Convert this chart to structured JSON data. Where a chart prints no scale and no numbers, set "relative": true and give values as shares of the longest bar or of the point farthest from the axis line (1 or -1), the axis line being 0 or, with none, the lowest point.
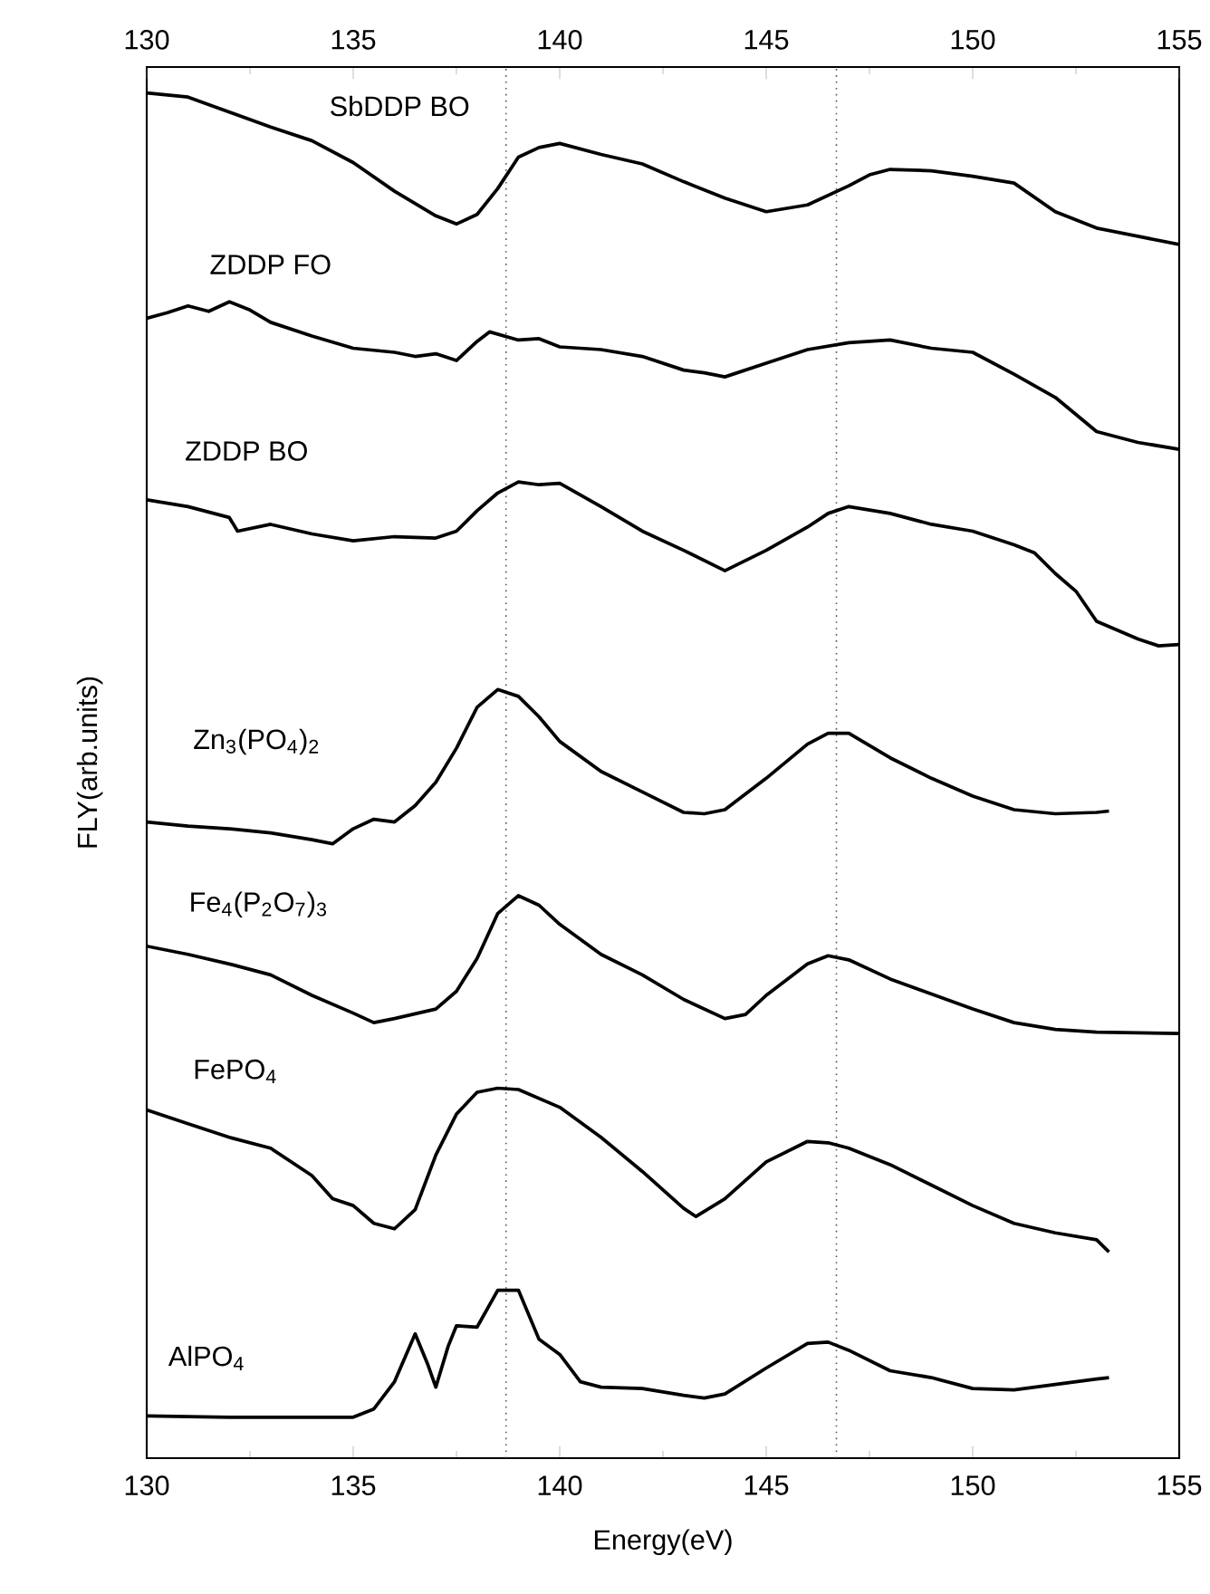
{
  "chart_data": {
    "type": "line",
    "relative": true,
    "xlabel": "Energy(eV)",
    "ylabel": "FLY(arb.units)",
    "xlim": [
      130,
      155
    ],
    "xticks": [
      130,
      135,
      140,
      145,
      150,
      155
    ],
    "x2lim": [
      130,
      155
    ],
    "x2ticks": [
      130,
      135,
      140,
      145,
      150,
      155
    ],
    "line_style": "solid",
    "ref_lines": [
      {
        "axis": "x",
        "value": 138.7,
        "color": "#555555",
        "line_style": "dotted"
      },
      {
        "axis": "x",
        "value": 146.7,
        "color": "#555555",
        "line_style": "dotted"
      }
    ],
    "series": [
      {
        "name": "SbDDP BO",
        "color": "#000000",
        "x": [
          130,
          131,
          132,
          133,
          134,
          135,
          136,
          137,
          137.5,
          138,
          138.5,
          139,
          139.5,
          140,
          141,
          142,
          143,
          144,
          145,
          146,
          146.5,
          147,
          147.5,
          148,
          149,
          150,
          151,
          152,
          153,
          154,
          155
        ],
        "values": [
          1.0,
          0.997,
          0.986,
          0.975,
          0.965,
          0.949,
          0.928,
          0.91,
          0.904,
          0.911,
          0.93,
          0.953,
          0.96,
          0.963,
          0.955,
          0.948,
          0.935,
          0.923,
          0.913,
          0.918,
          0.925,
          0.932,
          0.94,
          0.944,
          0.943,
          0.939,
          0.934,
          0.913,
          0.901,
          0.895,
          0.889
        ]
      },
      {
        "name": "ZDDP FO",
        "color": "#000000",
        "x": [
          130,
          130.5,
          131,
          131.5,
          132,
          132.5,
          133,
          134,
          135,
          136,
          136.5,
          137,
          137.5,
          138,
          138.3,
          139,
          139.5,
          140,
          141,
          142,
          143,
          143.5,
          144,
          145,
          146,
          147,
          148,
          149,
          150,
          151,
          152,
          153,
          154,
          155
        ],
        "values": [
          0.835,
          0.839,
          0.844,
          0.84,
          0.847,
          0.841,
          0.832,
          0.822,
          0.813,
          0.81,
          0.807,
          0.809,
          0.804,
          0.818,
          0.825,
          0.819,
          0.82,
          0.814,
          0.812,
          0.807,
          0.797,
          0.795,
          0.792,
          0.802,
          0.812,
          0.817,
          0.819,
          0.813,
          0.81,
          0.794,
          0.777,
          0.752,
          0.744,
          0.739
        ]
      },
      {
        "name": "ZDDP BO",
        "color": "#000000",
        "x": [
          130,
          131,
          132,
          132.2,
          133,
          134,
          135,
          136,
          137,
          137.5,
          138,
          138.5,
          139,
          139.5,
          140,
          141,
          142,
          143,
          144,
          145,
          146,
          146.5,
          147,
          148,
          149,
          150,
          151,
          151.5,
          152,
          152.5,
          153,
          154,
          154.5,
          155
        ],
        "values": [
          0.702,
          0.697,
          0.689,
          0.679,
          0.684,
          0.677,
          0.672,
          0.675,
          0.674,
          0.679,
          0.694,
          0.707,
          0.715,
          0.713,
          0.714,
          0.697,
          0.679,
          0.665,
          0.65,
          0.665,
          0.682,
          0.692,
          0.697,
          0.692,
          0.684,
          0.679,
          0.669,
          0.663,
          0.648,
          0.635,
          0.613,
          0.6,
          0.595,
          0.596
        ]
      },
      {
        "name": "Zn$_{3}$(PO$_{4}$)$_{2}$",
        "color": "#000000",
        "x": [
          130,
          131,
          132,
          133,
          134,
          134.5,
          135,
          135.5,
          136,
          136.5,
          137,
          137.5,
          138,
          138.5,
          139,
          139.5,
          140,
          141,
          142,
          143,
          143.5,
          144,
          145,
          146,
          146.5,
          147,
          148,
          149,
          150,
          151,
          152,
          153,
          153.3
        ],
        "values": [
          0.466,
          0.463,
          0.461,
          0.458,
          0.453,
          0.45,
          0.461,
          0.468,
          0.466,
          0.478,
          0.495,
          0.52,
          0.55,
          0.563,
          0.558,
          0.543,
          0.525,
          0.503,
          0.488,
          0.473,
          0.472,
          0.475,
          0.498,
          0.523,
          0.531,
          0.531,
          0.513,
          0.498,
          0.485,
          0.475,
          0.472,
          0.473,
          0.474
        ]
      },
      {
        "name": "Fe$_{4}$(P$_{2}$O$_{7}$)$_{3}$",
        "color": "#000000",
        "x": [
          130,
          131,
          132,
          133,
          134,
          135,
          135.5,
          136,
          137,
          137.5,
          138,
          138.5,
          139,
          139.5,
          140,
          141,
          142,
          143,
          144,
          144.5,
          145,
          146,
          146.5,
          147,
          148,
          149,
          150,
          151,
          152,
          153,
          155
        ],
        "values": [
          0.375,
          0.369,
          0.362,
          0.354,
          0.339,
          0.326,
          0.319,
          0.322,
          0.329,
          0.342,
          0.366,
          0.399,
          0.412,
          0.405,
          0.391,
          0.369,
          0.354,
          0.336,
          0.322,
          0.325,
          0.339,
          0.362,
          0.368,
          0.365,
          0.351,
          0.34,
          0.329,
          0.319,
          0.314,
          0.312,
          0.311
        ]
      },
      {
        "name": "FePO$_{4}$",
        "color": "#000000",
        "x": [
          130,
          131,
          132,
          133,
          134,
          134.5,
          135,
          135.5,
          136,
          136.5,
          137,
          137.5,
          138,
          138.5,
          139,
          140,
          141,
          142,
          143,
          143.3,
          144,
          145,
          146,
          146.5,
          147,
          148,
          149,
          150,
          151,
          152,
          153,
          153.3
        ],
        "values": [
          0.255,
          0.245,
          0.235,
          0.227,
          0.207,
          0.19,
          0.185,
          0.172,
          0.168,
          0.182,
          0.222,
          0.252,
          0.268,
          0.271,
          0.27,
          0.257,
          0.235,
          0.21,
          0.183,
          0.177,
          0.19,
          0.217,
          0.232,
          0.231,
          0.227,
          0.215,
          0.2,
          0.185,
          0.172,
          0.165,
          0.16,
          0.151
        ]
      },
      {
        "name": "AlPO$_{4}$",
        "color": "#000000",
        "x": [
          130,
          132,
          134,
          135,
          135.5,
          136,
          136.5,
          136.8,
          137,
          137.3,
          137.5,
          138,
          138.5,
          139,
          139.5,
          140,
          140.5,
          141,
          142,
          143,
          143.5,
          144,
          145,
          146,
          146.5,
          147,
          148,
          149,
          150,
          151,
          152,
          153,
          153.3
        ],
        "values": [
          0.031,
          0.03,
          0.03,
          0.03,
          0.036,
          0.056,
          0.091,
          0.069,
          0.052,
          0.082,
          0.097,
          0.096,
          0.123,
          0.123,
          0.087,
          0.076,
          0.056,
          0.052,
          0.051,
          0.046,
          0.044,
          0.047,
          0.066,
          0.084,
          0.085,
          0.079,
          0.064,
          0.059,
          0.051,
          0.05,
          0.054,
          0.058,
          0.059
        ]
      }
    ]
  }
}
